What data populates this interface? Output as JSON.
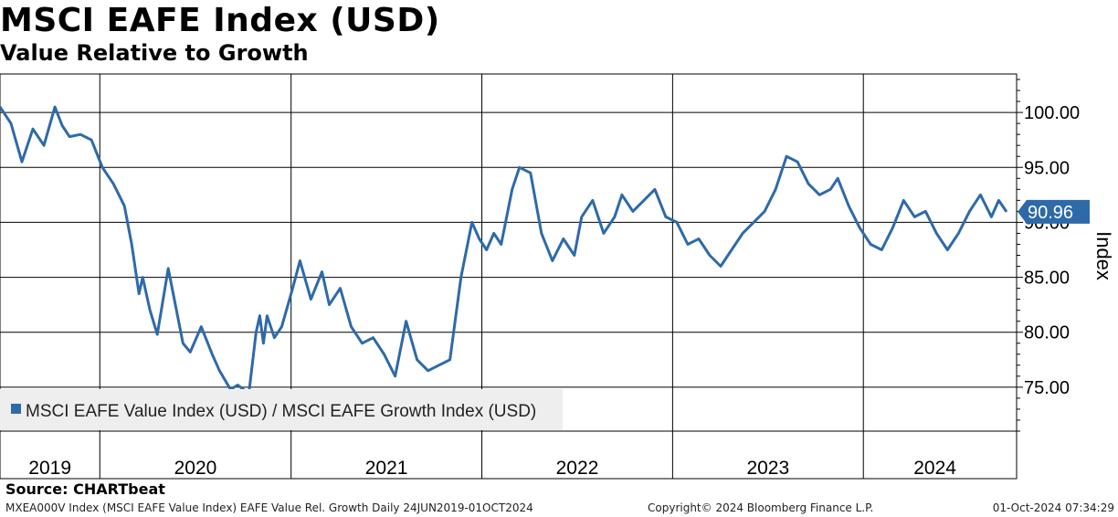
{
  "title": "MSCI EAFE Index (USD)",
  "subtitle": "Value Relative to Growth",
  "source": "Source: CHARTbeat",
  "footer": {
    "left": "MXEA000V Index (MSCI EAFE Value Index) EAFE Value Rel. Growth  Daily 24JUN2019-01OCT2024",
    "center": "Copyright© 2024 Bloomberg Finance L.P.",
    "right": "01-Oct-2024 07:34:29"
  },
  "colors": {
    "series": "#2e6aa8",
    "last_value_bg": "#2e6aa8",
    "legend_bg": "#eeeeee"
  },
  "chart_data": {
    "type": "line",
    "title": "MSCI EAFE Index (USD)",
    "subtitle": "Value Relative to Growth",
    "ylabel": "Index",
    "ylim": [
      71,
      103.5
    ],
    "yticks": [
      75,
      80,
      85,
      90,
      95,
      100
    ],
    "ytick_labels": [
      "75.00",
      "80.00",
      "85.00",
      "90.00",
      "95.00",
      "100.00"
    ],
    "x_axis_labels": [
      "2019",
      "2020",
      "2021",
      "2022",
      "2023",
      "2024"
    ],
    "x_range": [
      "2019-06-24",
      "2024-10-01"
    ],
    "year_boundaries": [
      "2020-01-01",
      "2021-01-01",
      "2022-01-01",
      "2023-01-01",
      "2024-01-01"
    ],
    "grid": true,
    "legend_position": "bottom-left",
    "last_value": "90.96",
    "series": [
      {
        "name": "MSCI EAFE Value Index (USD) / MSCI EAFE Growth Index (USD)",
        "x": [
          "2019-06-24",
          "2019-07-15",
          "2019-08-05",
          "2019-08-26",
          "2019-09-16",
          "2019-10-07",
          "2019-10-21",
          "2019-11-04",
          "2019-11-25",
          "2019-12-16",
          "2020-01-06",
          "2020-01-27",
          "2020-02-17",
          "2020-03-02",
          "2020-03-16",
          "2020-03-23",
          "2020-04-06",
          "2020-04-20",
          "2020-05-11",
          "2020-06-08",
          "2020-06-22",
          "2020-07-13",
          "2020-08-03",
          "2020-08-17",
          "2020-09-07",
          "2020-09-21",
          "2020-10-12",
          "2020-10-26",
          "2020-11-02",
          "2020-11-09",
          "2020-11-16",
          "2020-11-30",
          "2020-12-14",
          "2021-01-04",
          "2021-01-18",
          "2021-02-08",
          "2021-03-01",
          "2021-03-15",
          "2021-04-05",
          "2021-04-26",
          "2021-05-17",
          "2021-06-07",
          "2021-06-28",
          "2021-07-19",
          "2021-08-09",
          "2021-08-30",
          "2021-09-20",
          "2021-10-11",
          "2021-11-01",
          "2021-11-22",
          "2021-12-13",
          "2021-12-27",
          "2022-01-10",
          "2022-01-24",
          "2022-02-07",
          "2022-02-28",
          "2022-03-14",
          "2022-04-04",
          "2022-04-25",
          "2022-05-16",
          "2022-06-06",
          "2022-06-27",
          "2022-07-11",
          "2022-08-01",
          "2022-08-22",
          "2022-09-12",
          "2022-09-26",
          "2022-10-17",
          "2022-11-07",
          "2022-11-28",
          "2022-12-19",
          "2023-01-09",
          "2023-01-30",
          "2023-02-20",
          "2023-03-13",
          "2023-04-03",
          "2023-04-24",
          "2023-05-15",
          "2023-06-05",
          "2023-06-26",
          "2023-07-17",
          "2023-08-07",
          "2023-08-28",
          "2023-09-18",
          "2023-10-09",
          "2023-10-30",
          "2023-11-13",
          "2023-12-04",
          "2023-12-25",
          "2024-01-15",
          "2024-02-05",
          "2024-02-26",
          "2024-03-18",
          "2024-04-08",
          "2024-04-29",
          "2024-05-20",
          "2024-06-10",
          "2024-07-01",
          "2024-07-22",
          "2024-08-12",
          "2024-09-02",
          "2024-09-16",
          "2024-10-01"
        ],
        "values": [
          100.5,
          99.0,
          95.5,
          98.5,
          97.0,
          100.5,
          98.8,
          97.8,
          98.0,
          97.5,
          95.0,
          93.5,
          91.5,
          88.0,
          83.5,
          85.0,
          82.0,
          79.8,
          85.8,
          79.0,
          78.2,
          80.5,
          78.0,
          76.5,
          74.8,
          75.2,
          74.4,
          80.0,
          81.5,
          79.0,
          81.5,
          79.5,
          80.5,
          84.0,
          86.5,
          83.0,
          85.5,
          82.5,
          84.0,
          80.5,
          79.0,
          79.5,
          78.0,
          76.0,
          81.0,
          77.5,
          76.5,
          77.0,
          77.5,
          85.0,
          90.0,
          88.5,
          87.5,
          89.0,
          88.0,
          93.0,
          95.0,
          94.5,
          89.0,
          86.5,
          88.5,
          87.0,
          90.5,
          92.0,
          89.0,
          90.5,
          92.5,
          91.0,
          92.0,
          93.0,
          90.5,
          90.0,
          88.0,
          88.5,
          87.0,
          86.0,
          87.5,
          89.0,
          90.0,
          91.0,
          93.0,
          96.0,
          95.5,
          93.5,
          92.5,
          93.0,
          94.0,
          91.5,
          89.5,
          88.0,
          87.5,
          89.5,
          92.0,
          90.5,
          91.0,
          89.0,
          87.5,
          89.0,
          91.0,
          92.5,
          90.5,
          92.0,
          90.96
        ]
      }
    ]
  }
}
